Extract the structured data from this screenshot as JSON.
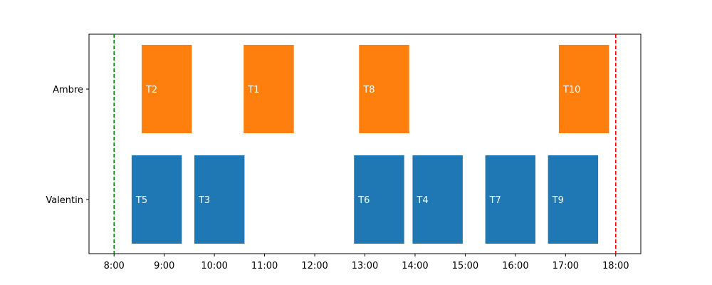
{
  "chart_data": {
    "type": "gantt",
    "x_axis": {
      "ticks": [
        "8:00",
        "9:00",
        "10:00",
        "11:00",
        "12:00",
        "13:00",
        "14:00",
        "15:00",
        "16:00",
        "17:00",
        "18:00"
      ],
      "range": [
        "7:30",
        "18:30"
      ]
    },
    "rows": [
      "Ambre",
      "Valentin"
    ],
    "reference_lines": [
      {
        "time": "8:00",
        "color": "#008000",
        "style": "dashed"
      },
      {
        "time": "18:00",
        "color": "#ff0000",
        "style": "dashed"
      }
    ],
    "series": [
      {
        "row": "Ambre",
        "color": "#ff7f0e",
        "tasks": [
          {
            "label": "T2",
            "start": "8:33",
            "end": "9:33"
          },
          {
            "label": "T1",
            "start": "10:35",
            "end": "11:35"
          },
          {
            "label": "T8",
            "start": "12:53",
            "end": "13:53"
          },
          {
            "label": "T10",
            "start": "16:52",
            "end": "17:52"
          }
        ]
      },
      {
        "row": "Valentin",
        "color": "#1f77b4",
        "tasks": [
          {
            "label": "T5",
            "start": "8:21",
            "end": "9:21"
          },
          {
            "label": "T3",
            "start": "9:36",
            "end": "10:36"
          },
          {
            "label": "T6",
            "start": "12:47",
            "end": "13:47"
          },
          {
            "label": "T4",
            "start": "13:57",
            "end": "14:57"
          },
          {
            "label": "T7",
            "start": "15:24",
            "end": "16:24"
          },
          {
            "label": "T9",
            "start": "16:39",
            "end": "17:39"
          }
        ]
      }
    ],
    "grid": false,
    "legend": "none"
  }
}
